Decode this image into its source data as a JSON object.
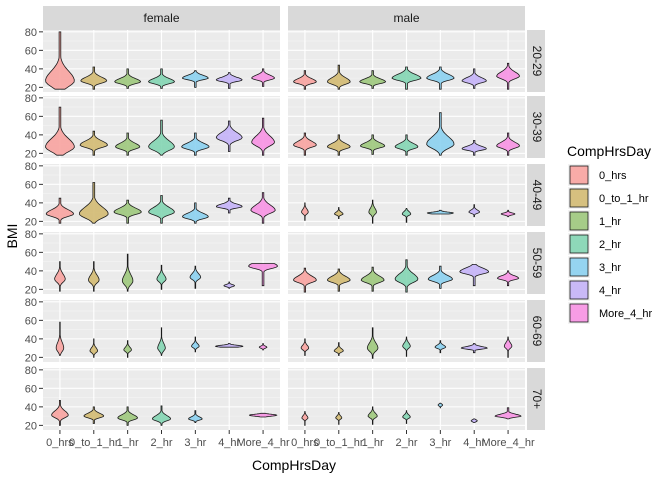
{
  "chart_data": {
    "type": "violin",
    "xlabel": "CompHrsDay",
    "ylabel": "BMI",
    "legend_title": "CompHrsDay",
    "legend_placement": "right",
    "grid": true,
    "categories": [
      "0_hrs",
      "0_to_1_hr",
      "1_hr",
      "2_hr",
      "3_hr",
      "4_hr",
      "More_4_hr"
    ],
    "colors": [
      "#F8A19D",
      "#D2B86E",
      "#9BC679",
      "#7FD4B0",
      "#87CFEF",
      "#C3B0F7",
      "#F78FE2"
    ],
    "columns": [
      "female",
      "male"
    ],
    "rows": [
      "20-29",
      "30-39",
      "40-49",
      "50-59",
      "60-69",
      "70+"
    ],
    "ylim": [
      15,
      82
    ],
    "yticks": [
      20,
      40,
      60,
      80
    ],
    "panels": {
      "20-29": {
        "female": [
          [
            18,
            80,
            27,
            0.95
          ],
          [
            18,
            42,
            27,
            0.85
          ],
          [
            19,
            40,
            26,
            0.85
          ],
          [
            19,
            40,
            26,
            0.85
          ],
          [
            20,
            38,
            30,
            0.85
          ],
          [
            19,
            36,
            28,
            0.85
          ],
          [
            21,
            40,
            30,
            0.75
          ]
        ],
        "male": [
          [
            18,
            38,
            26,
            0.75
          ],
          [
            18,
            44,
            26,
            0.75
          ],
          [
            19,
            38,
            26,
            0.85
          ],
          [
            18,
            42,
            30,
            0.95
          ],
          [
            18,
            42,
            30,
            0.9
          ],
          [
            19,
            40,
            27,
            0.8
          ],
          [
            18,
            46,
            32,
            0.75
          ]
        ]
      },
      "30-39": {
        "female": [
          [
            18,
            70,
            27,
            0.95
          ],
          [
            18,
            44,
            29,
            0.9
          ],
          [
            18,
            42,
            27,
            0.8
          ],
          [
            18,
            56,
            27,
            0.85
          ],
          [
            18,
            42,
            27,
            0.9
          ],
          [
            22,
            55,
            37,
            0.85
          ],
          [
            18,
            58,
            32,
            0.75
          ]
        ],
        "male": [
          [
            18,
            42,
            29,
            0.75
          ],
          [
            18,
            40,
            27,
            0.75
          ],
          [
            19,
            40,
            28,
            0.8
          ],
          [
            18,
            40,
            27,
            0.75
          ],
          [
            18,
            64,
            30,
            0.9
          ],
          [
            18,
            34,
            25,
            0.8
          ],
          [
            18,
            42,
            28,
            0.75
          ]
        ]
      },
      "40-49": {
        "female": [
          [
            18,
            45,
            28,
            0.9
          ],
          [
            18,
            62,
            28,
            0.95
          ],
          [
            18,
            43,
            30,
            0.9
          ],
          [
            18,
            48,
            30,
            0.85
          ],
          [
            18,
            40,
            25,
            0.85
          ],
          [
            29,
            45,
            36,
            0.85
          ],
          [
            18,
            51,
            32,
            0.8
          ]
        ],
        "male": [
          [
            21,
            40,
            30,
            0.22
          ],
          [
            23,
            35,
            28,
            0.28
          ],
          [
            18,
            43,
            30,
            0.25
          ],
          [
            19,
            34,
            28,
            0.28
          ],
          [
            28,
            32,
            29,
            0.85
          ],
          [
            25,
            38,
            30,
            0.35
          ],
          [
            25,
            32,
            28,
            0.45
          ]
        ]
      },
      "50-59": {
        "female": [
          [
            18,
            50,
            31,
            0.35
          ],
          [
            18,
            50,
            30,
            0.35
          ],
          [
            18,
            58,
            29,
            0.35
          ],
          [
            20,
            46,
            31,
            0.3
          ],
          [
            21,
            45,
            33,
            0.35
          ],
          [
            21,
            28,
            24,
            0.35
          ],
          [
            24,
            48,
            45,
            0.95
          ]
        ],
        "male": [
          [
            17,
            43,
            30,
            0.75
          ],
          [
            18,
            42,
            30,
            0.75
          ],
          [
            18,
            44,
            30,
            0.75
          ],
          [
            17,
            52,
            31,
            0.75
          ],
          [
            21,
            45,
            31,
            0.8
          ],
          [
            24,
            47,
            39,
            0.95
          ],
          [
            24,
            40,
            32,
            0.7
          ]
        ]
      },
      "60-69": {
        "female": [
          [
            22,
            58,
            30,
            0.25
          ],
          [
            20,
            40,
            27,
            0.25
          ],
          [
            20,
            38,
            28,
            0.25
          ],
          [
            22,
            52,
            30,
            0.25
          ],
          [
            26,
            42,
            32,
            0.25
          ],
          [
            31,
            35,
            32,
            0.9
          ],
          [
            28,
            35,
            31,
            0.25
          ]
        ],
        "male": [
          [
            22,
            40,
            30,
            0.25
          ],
          [
            22,
            36,
            27,
            0.3
          ],
          [
            19,
            52,
            30,
            0.35
          ],
          [
            21,
            42,
            32,
            0.25
          ],
          [
            25,
            38,
            31,
            0.35
          ],
          [
            25,
            35,
            30,
            0.85
          ],
          [
            20,
            42,
            32,
            0.25
          ]
        ]
      },
      "70+": {
        "female": [
          [
            20,
            47,
            31,
            0.55
          ],
          [
            22,
            40,
            30,
            0.65
          ],
          [
            20,
            40,
            28,
            0.65
          ],
          [
            20,
            41,
            27,
            0.6
          ],
          [
            23,
            36,
            27,
            0.45
          ],
          null,
          [
            29,
            33,
            31,
            0.9
          ]
        ],
        "male": [
          [
            20,
            35,
            28,
            0.2
          ],
          [
            21,
            34,
            28,
            0.2
          ],
          [
            21,
            40,
            30,
            0.3
          ],
          [
            22,
            36,
            29,
            0.25
          ],
          [
            39,
            44,
            42,
            0.15
          ],
          [
            23,
            27,
            25,
            0.2
          ],
          [
            27,
            39,
            30,
            0.85
          ]
        ]
      }
    }
  }
}
